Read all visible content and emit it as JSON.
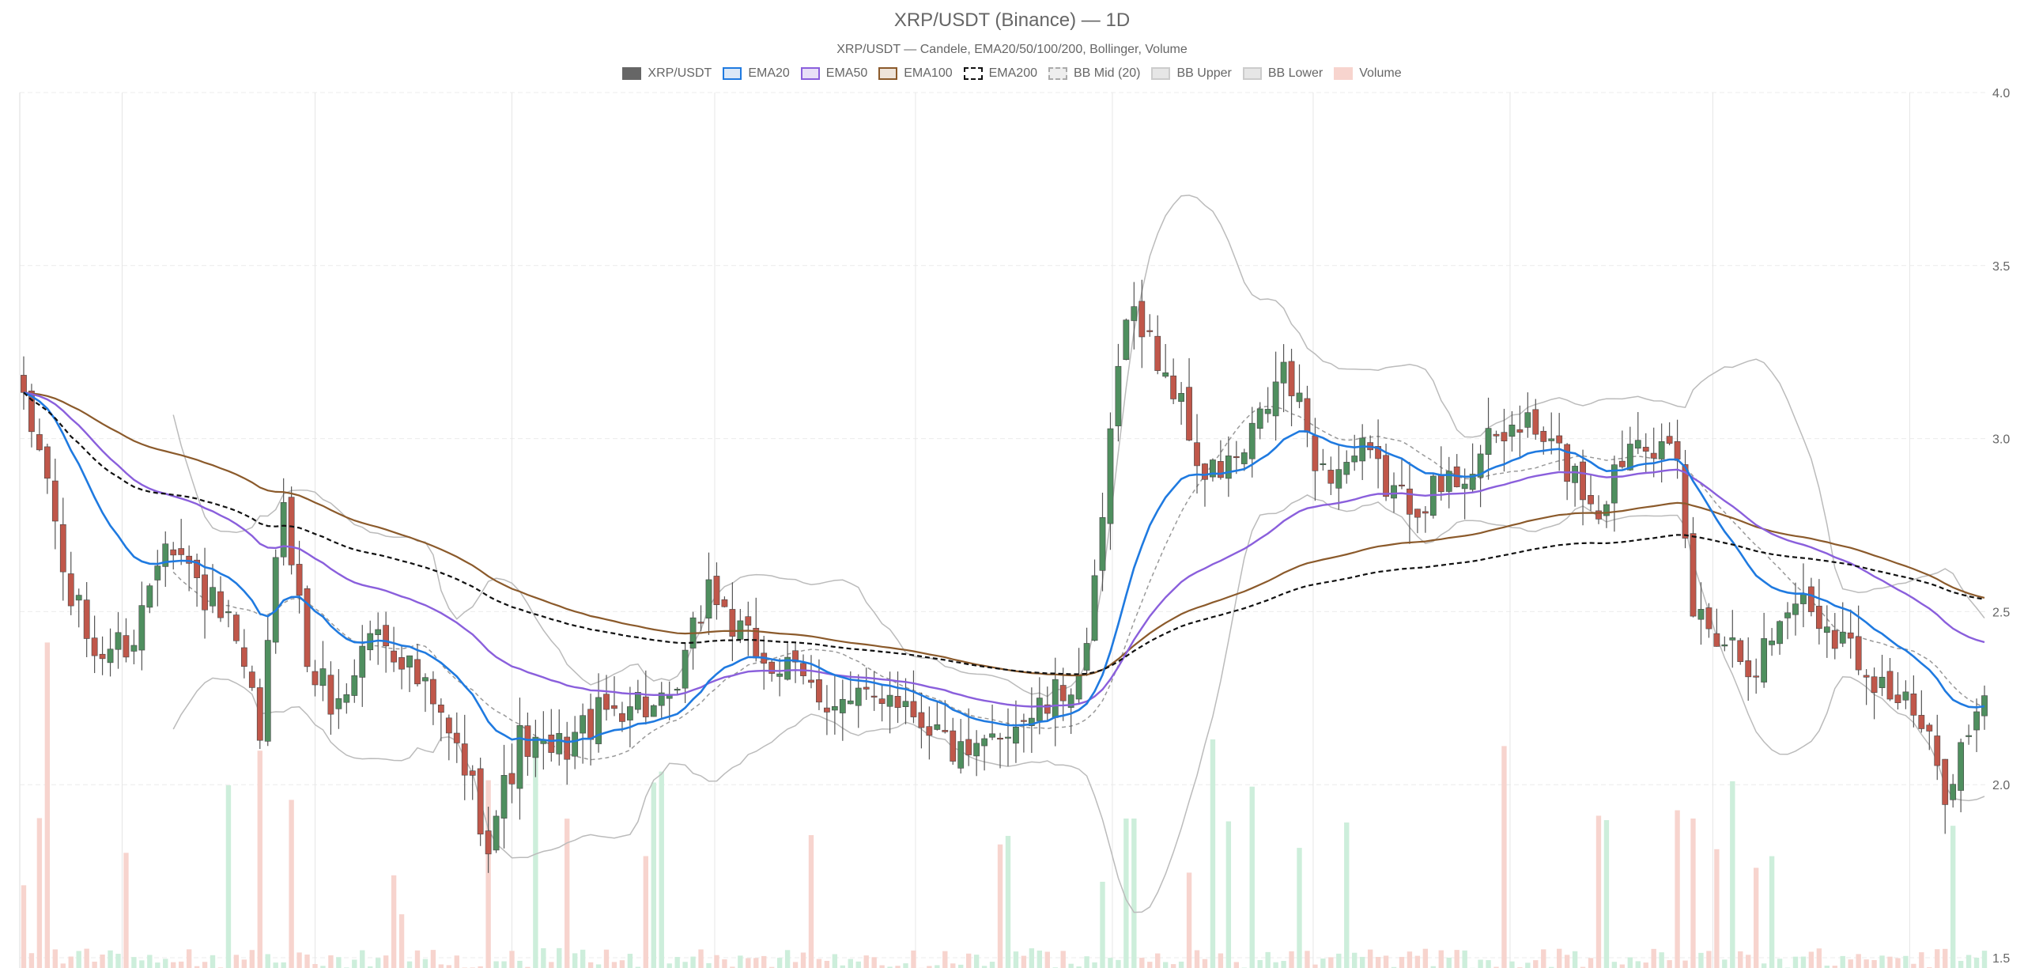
{
  "chart_data": {
    "type": "candlestick",
    "title": "XRP/USDT (Binance) — 1D",
    "subtitle": "XRP/USDT — Candele, EMA20/50/100/200, Bollinger, Volume",
    "ylim": [
      1.5,
      4.0
    ],
    "yticks": [
      "1.5",
      "2.0",
      "2.5",
      "3.0",
      "3.5",
      "4.0"
    ],
    "grid": true,
    "legend_position": "top",
    "bars": 250,
    "legend": [
      {
        "label": "XRP/USDT",
        "color": "#666666",
        "fill": "#666666",
        "dashed": false
      },
      {
        "label": "EMA20",
        "color": "#1f7ae0",
        "fill": "#dbe8f7",
        "dashed": false
      },
      {
        "label": "EMA50",
        "color": "#8a5fdc",
        "fill": "#e8e0f7",
        "dashed": false
      },
      {
        "label": "EMA100",
        "color": "#8b5a2b",
        "fill": "#eee4da",
        "dashed": false
      },
      {
        "label": "EMA200",
        "color": "#111111",
        "fill": "#ffffff",
        "dashed": true
      },
      {
        "label": "BB Mid (20)",
        "color": "#aaaaaa",
        "fill": "#eeeeee",
        "dashed": true
      },
      {
        "label": "BB Upper",
        "color": "#cccccc",
        "fill": "#e6e6e6",
        "dashed": false
      },
      {
        "label": "BB Lower",
        "color": "#cccccc",
        "fill": "#e6e6e6",
        "dashed": false
      },
      {
        "label": "Volume",
        "color": "#f7d4ce",
        "fill": "#f7d4ce",
        "dashed": false
      }
    ],
    "colors": {
      "up": "#4f8f5f",
      "down": "#c0574a",
      "wick": "#555555",
      "vol_up": "#cdeedb",
      "vol_down": "#f7d4ce"
    },
    "close_anchors": [
      [
        0,
        3.08
      ],
      [
        3,
        2.9
      ],
      [
        5,
        2.6
      ],
      [
        9,
        2.38
      ],
      [
        14,
        2.42
      ],
      [
        18,
        2.75
      ],
      [
        22,
        2.58
      ],
      [
        26,
        2.45
      ],
      [
        30,
        2.15
      ],
      [
        33,
        2.85
      ],
      [
        36,
        2.35
      ],
      [
        40,
        2.22
      ],
      [
        44,
        2.45
      ],
      [
        48,
        2.38
      ],
      [
        52,
        2.22
      ],
      [
        56,
        2.05
      ],
      [
        59,
        1.85
      ],
      [
        63,
        2.12
      ],
      [
        67,
        2.08
      ],
      [
        72,
        2.18
      ],
      [
        77,
        2.25
      ],
      [
        82,
        2.2
      ],
      [
        87,
        2.58
      ],
      [
        91,
        2.42
      ],
      [
        95,
        2.35
      ],
      [
        100,
        2.28
      ],
      [
        105,
        2.22
      ],
      [
        110,
        2.28
      ],
      [
        115,
        2.18
      ],
      [
        120,
        2.05
      ],
      [
        125,
        2.18
      ],
      [
        130,
        2.22
      ],
      [
        135,
        2.35
      ],
      [
        140,
        3.4
      ],
      [
        146,
        3.15
      ],
      [
        150,
        2.88
      ],
      [
        155,
        2.95
      ],
      [
        160,
        3.2
      ],
      [
        165,
        2.9
      ],
      [
        170,
        2.95
      ],
      [
        175,
        2.82
      ],
      [
        180,
        2.85
      ],
      [
        185,
        2.95
      ],
      [
        190,
        3.05
      ],
      [
        195,
        2.95
      ],
      [
        200,
        2.8
      ],
      [
        205,
        3.05
      ],
      [
        210,
        2.9
      ],
      [
        212,
        2.5
      ],
      [
        215,
        2.45
      ],
      [
        220,
        2.35
      ],
      [
        225,
        2.55
      ],
      [
        230,
        2.45
      ],
      [
        235,
        2.32
      ],
      [
        240,
        2.2
      ],
      [
        244,
        2.0
      ],
      [
        247,
        2.15
      ],
      [
        249,
        2.22
      ]
    ],
    "volume_ylim": [
      0,
      1.0
    ]
  }
}
